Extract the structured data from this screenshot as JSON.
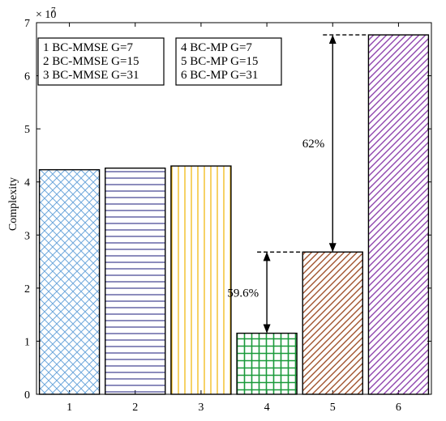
{
  "chart_data": {
    "type": "bar",
    "categories": [
      "1",
      "2",
      "3",
      "4",
      "5",
      "6"
    ],
    "values": [
      4.23,
      4.26,
      4.3,
      1.15,
      2.68,
      6.77
    ],
    "multiplier_label": "× 10",
    "multiplier_exponent": "7",
    "ylabel": "Complexity",
    "xlabel": "",
    "ylim": [
      0,
      7
    ],
    "yticks": [
      0,
      1,
      2,
      3,
      4,
      5,
      6,
      7
    ],
    "grid": false,
    "bars": [
      {
        "category": "1",
        "label": "BC-MMSE G=7",
        "color": "#6fa8dc",
        "pattern": "crosshatch-diagonal"
      },
      {
        "category": "2",
        "label": "BC-MMSE G=15",
        "color": "#1a1a7a",
        "pattern": "horizontal-lines"
      },
      {
        "category": "3",
        "label": "BC-MMSE G=31",
        "color": "#f0b400",
        "pattern": "vertical-lines"
      },
      {
        "category": "4",
        "label": "BC-MP G=7",
        "color": "#1a9a3a",
        "pattern": "grid"
      },
      {
        "category": "5",
        "label": "BC-MP G=15",
        "color": "#a0522d",
        "pattern": "diagonal-lines"
      },
      {
        "category": "6",
        "label": "BC-MP G=31",
        "color": "#8e44ad",
        "pattern": "diagonal-lines"
      }
    ],
    "legend": [
      {
        "group": "left",
        "entries": [
          "1  BC-MMSE G=7",
          "2  BC-MMSE G=15",
          "3  BC-MMSE G=31"
        ]
      },
      {
        "group": "right",
        "entries": [
          "4  BC-MP G=7",
          "5  BC-MP G=15",
          "6  BC-MP G=31"
        ]
      }
    ],
    "legend_placement": "top-left",
    "annotations": [
      {
        "text": "59.6%",
        "from_bar": "4",
        "to_value": 2.68
      },
      {
        "text": "62%",
        "from_bar": "5",
        "to_value": 6.77
      }
    ]
  }
}
